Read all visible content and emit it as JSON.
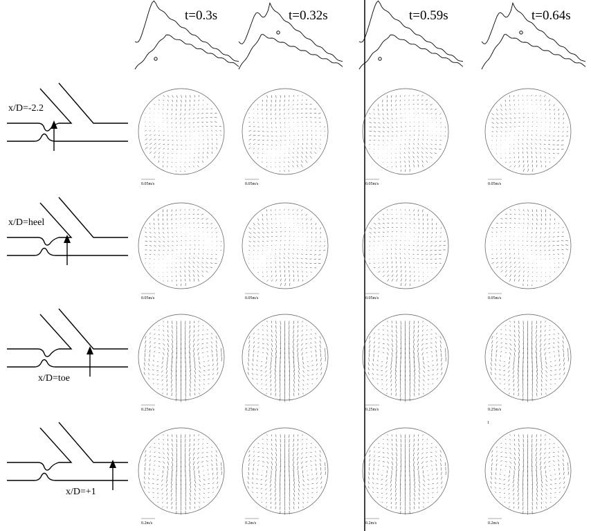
{
  "header": {
    "times": [
      "t=0.3s",
      "t=0.32s",
      "t=0.59s",
      "t=0.64s"
    ]
  },
  "rows": [
    {
      "label": "x/D=-2.2",
      "scales": [
        "0.05m/s",
        "0.05m/s",
        "0.05m/s",
        "0.05m/s"
      ]
    },
    {
      "label": "x/D=heel",
      "scales": [
        "0.05m/s",
        "0.05m/s",
        "0.05m/s",
        "0.05m/s"
      ]
    },
    {
      "label": "x/D=toe",
      "scales": [
        "0.25m/s",
        "0.25m/s",
        "0.25m/s",
        "0.25m/s"
      ]
    },
    {
      "label": "x/D=+1",
      "scales": [
        "0.2m/s",
        "0.2m/s",
        "0.2m/s",
        "0.2m/s"
      ]
    }
  ],
  "stray_label": "1"
}
